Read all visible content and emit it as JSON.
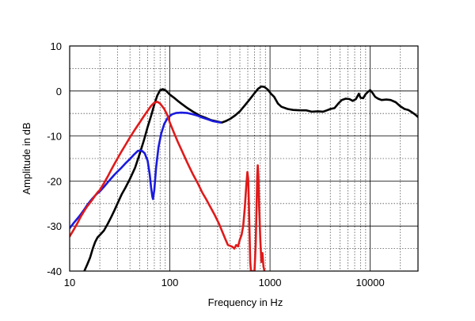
{
  "chart_data": {
    "type": "line",
    "xscale": "log",
    "xlabel": "Frequency in Hz",
    "ylabel": "Amplitude in dB",
    "xlim": [
      10,
      30000
    ],
    "ylim": [
      -40,
      10
    ],
    "xticks": [
      10,
      100,
      1000,
      10000
    ],
    "xtick_labels": [
      "10",
      "100",
      "1000",
      "10000"
    ],
    "yticks": [
      10,
      0,
      -10,
      -20,
      -30,
      -40
    ],
    "ytick_labels": [
      "10",
      "0",
      "-10",
      "-20",
      "-30",
      "-40"
    ],
    "grid": true,
    "series": [
      {
        "name": "black",
        "color": "#000000",
        "points": [
          [
            14,
            -40
          ],
          [
            15,
            -38.5
          ],
          [
            16,
            -37
          ],
          [
            17,
            -35
          ],
          [
            18,
            -33.5
          ],
          [
            19,
            -32.5
          ],
          [
            20,
            -32
          ],
          [
            22,
            -31
          ],
          [
            24,
            -29.5
          ],
          [
            26,
            -28
          ],
          [
            28,
            -26.5
          ],
          [
            30,
            -25
          ],
          [
            33,
            -23
          ],
          [
            36,
            -21.5
          ],
          [
            40,
            -19.5
          ],
          [
            45,
            -17
          ],
          [
            50,
            -14
          ],
          [
            55,
            -11
          ],
          [
            60,
            -8
          ],
          [
            65,
            -5.5
          ],
          [
            70,
            -3
          ],
          [
            75,
            -1
          ],
          [
            80,
            0.2
          ],
          [
            85,
            0.4
          ],
          [
            90,
            0.2
          ],
          [
            95,
            -0.3
          ],
          [
            100,
            -0.8
          ],
          [
            110,
            -1.5
          ],
          [
            120,
            -2.2
          ],
          [
            130,
            -2.8
          ],
          [
            150,
            -3.8
          ],
          [
            170,
            -4.6
          ],
          [
            200,
            -5.5
          ],
          [
            230,
            -6
          ],
          [
            260,
            -6.5
          ],
          [
            300,
            -6.8
          ],
          [
            330,
            -7
          ],
          [
            360,
            -6.7
          ],
          [
            400,
            -6.2
          ],
          [
            450,
            -5.4
          ],
          [
            500,
            -4.5
          ],
          [
            560,
            -3.2
          ],
          [
            620,
            -2
          ],
          [
            700,
            -0.5
          ],
          [
            760,
            0.5
          ],
          [
            820,
            1
          ],
          [
            880,
            0.9
          ],
          [
            950,
            0.3
          ],
          [
            1020,
            -0.6
          ],
          [
            1100,
            -1.3
          ],
          [
            1200,
            -2.8
          ],
          [
            1300,
            -3.5
          ],
          [
            1500,
            -4
          ],
          [
            1700,
            -4.2
          ],
          [
            2000,
            -4.3
          ],
          [
            2300,
            -4.3
          ],
          [
            2600,
            -4.6
          ],
          [
            3000,
            -4.5
          ],
          [
            3400,
            -4.6
          ],
          [
            3700,
            -4.3
          ],
          [
            4000,
            -4
          ],
          [
            4400,
            -3.8
          ],
          [
            4800,
            -2.8
          ],
          [
            5200,
            -2
          ],
          [
            5700,
            -1.7
          ],
          [
            6200,
            -1.8
          ],
          [
            6700,
            -2.2
          ],
          [
            7200,
            -1.8
          ],
          [
            7700,
            -0.6
          ],
          [
            8000,
            -1.5
          ],
          [
            8500,
            -1.6
          ],
          [
            9000,
            -0.7
          ],
          [
            9500,
            -0.2
          ],
          [
            10000,
            0.2
          ],
          [
            10600,
            -0.5
          ],
          [
            11200,
            -1.3
          ],
          [
            12000,
            -1.7
          ],
          [
            13000,
            -2
          ],
          [
            14500,
            -1.9
          ],
          [
            16000,
            -2
          ],
          [
            18000,
            -2.5
          ],
          [
            20000,
            -3.4
          ],
          [
            22000,
            -4
          ],
          [
            24000,
            -4.2
          ],
          [
            26000,
            -4.7
          ],
          [
            28000,
            -5.2
          ],
          [
            30000,
            -5.8
          ]
        ]
      },
      {
        "name": "blue",
        "color": "#1a1adf",
        "points": [
          [
            10,
            -30.5
          ],
          [
            11,
            -29.3
          ],
          [
            12,
            -28.3
          ],
          [
            13,
            -27.3
          ],
          [
            14,
            -26.3
          ],
          [
            15,
            -25.3
          ],
          [
            16,
            -24.5
          ],
          [
            17,
            -23.8
          ],
          [
            18,
            -23.2
          ],
          [
            19,
            -22.7
          ],
          [
            20,
            -22.3
          ],
          [
            22,
            -21.3
          ],
          [
            24,
            -20.3
          ],
          [
            26,
            -19.4
          ],
          [
            28,
            -18.6
          ],
          [
            30,
            -17.9
          ],
          [
            33,
            -17
          ],
          [
            36,
            -16.1
          ],
          [
            40,
            -15.1
          ],
          [
            44,
            -14.1
          ],
          [
            48,
            -13.3
          ],
          [
            52,
            -13.2
          ],
          [
            56,
            -13.8
          ],
          [
            60,
            -15.5
          ],
          [
            63,
            -18.5
          ],
          [
            65,
            -21.5
          ],
          [
            67,
            -23.5
          ],
          [
            68,
            -24
          ],
          [
            70,
            -22
          ],
          [
            73,
            -17
          ],
          [
            77,
            -12.5
          ],
          [
            82,
            -9.5
          ],
          [
            88,
            -7.3
          ],
          [
            95,
            -6
          ],
          [
            105,
            -5.2
          ],
          [
            115,
            -4.9
          ],
          [
            130,
            -4.8
          ],
          [
            150,
            -4.9
          ],
          [
            170,
            -5.2
          ],
          [
            190,
            -5.5
          ],
          [
            210,
            -5.9
          ],
          [
            240,
            -6.3
          ],
          [
            270,
            -6.7
          ],
          [
            300,
            -6.9
          ],
          [
            320,
            -7
          ]
        ]
      },
      {
        "name": "red",
        "color": "#e01a1a",
        "points": [
          [
            10,
            -32.3
          ],
          [
            11,
            -30.8
          ],
          [
            12,
            -29.3
          ],
          [
            13,
            -27.8
          ],
          [
            14,
            -26.6
          ],
          [
            15,
            -25.6
          ],
          [
            16,
            -24.8
          ],
          [
            17,
            -24
          ],
          [
            18,
            -23.2
          ],
          [
            19,
            -22.5
          ],
          [
            20,
            -22
          ],
          [
            22,
            -20.5
          ],
          [
            24,
            -19
          ],
          [
            26,
            -17.5
          ],
          [
            28,
            -16.2
          ],
          [
            30,
            -15
          ],
          [
            33,
            -13.4
          ],
          [
            36,
            -12
          ],
          [
            40,
            -10.3
          ],
          [
            45,
            -8.5
          ],
          [
            50,
            -7
          ],
          [
            55,
            -5.6
          ],
          [
            60,
            -4.4
          ],
          [
            65,
            -3.3
          ],
          [
            70,
            -2.6
          ],
          [
            75,
            -2.4
          ],
          [
            80,
            -2.8
          ],
          [
            88,
            -4
          ],
          [
            95,
            -5.5
          ],
          [
            100,
            -7
          ],
          [
            110,
            -9.3
          ],
          [
            120,
            -11.3
          ],
          [
            130,
            -13
          ],
          [
            150,
            -16
          ],
          [
            170,
            -18.5
          ],
          [
            190,
            -20.5
          ],
          [
            210,
            -22.5
          ],
          [
            230,
            -24
          ],
          [
            250,
            -25.5
          ],
          [
            280,
            -27.5
          ],
          [
            310,
            -29.5
          ],
          [
            330,
            -31
          ],
          [
            360,
            -33
          ],
          [
            380,
            -34.2
          ],
          [
            400,
            -34.4
          ],
          [
            420,
            -34.6
          ],
          [
            440,
            -35
          ],
          [
            460,
            -34.2
          ],
          [
            480,
            -34.5
          ],
          [
            500,
            -33
          ],
          [
            520,
            -32
          ],
          [
            540,
            -30
          ],
          [
            560,
            -26
          ],
          [
            580,
            -21
          ],
          [
            595,
            -18
          ],
          [
            605,
            -19.5
          ],
          [
            615,
            -25
          ],
          [
            625,
            -32
          ],
          [
            635,
            -38
          ],
          [
            645,
            -40
          ],
          [
            700,
            -40
          ],
          [
            720,
            -34
          ],
          [
            735,
            -25
          ],
          [
            745,
            -19
          ],
          [
            755,
            -16.5
          ],
          [
            765,
            -19
          ],
          [
            780,
            -26
          ],
          [
            800,
            -33
          ],
          [
            820,
            -38
          ],
          [
            840,
            -36
          ],
          [
            860,
            -39
          ],
          [
            880,
            -40
          ]
        ]
      }
    ]
  }
}
